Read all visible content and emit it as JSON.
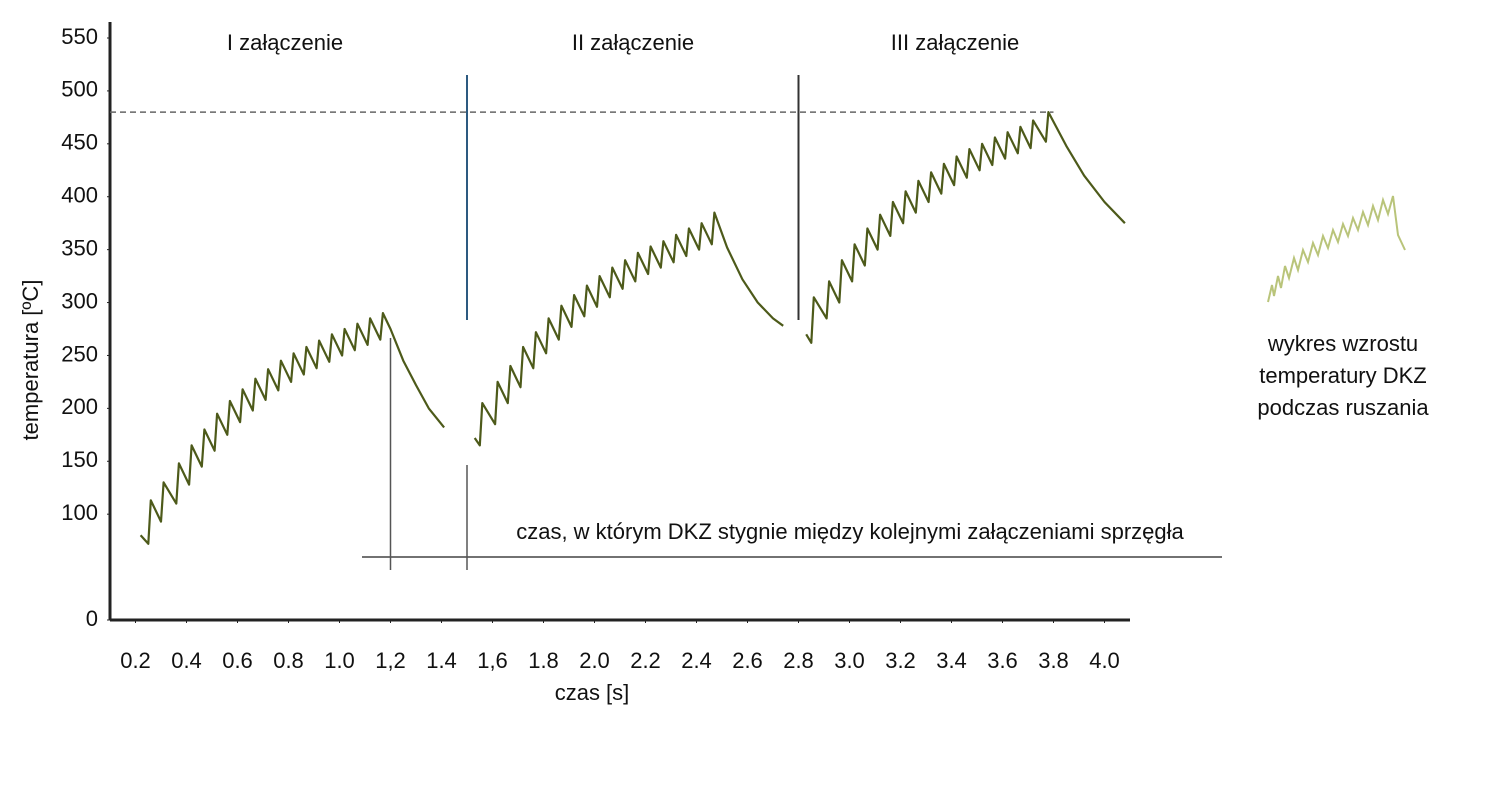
{
  "chart_data": {
    "type": "line",
    "x_label": "czas [s]",
    "y_label": "temperatura [ºC]",
    "xlim": [
      0.1,
      4.1
    ],
    "ylim": [
      0,
      550
    ],
    "xticks": [
      0.2,
      0.4,
      0.6,
      0.8,
      {
        "value": 1,
        "label": "1.0"
      },
      {
        "value": 1.2,
        "label": "1,2"
      },
      1.4,
      {
        "value": 1.6,
        "label": "1,6"
      },
      1.8,
      {
        "value": 2,
        "label": "2.0"
      },
      2.2,
      2.4,
      2.6,
      2.8,
      {
        "value": 3,
        "label": "3.0"
      },
      3.2,
      3.4,
      3.6,
      3.8,
      {
        "value": 4,
        "label": "4.0"
      }
    ],
    "yticks": [
      0,
      100,
      150,
      200,
      250,
      300,
      350,
      400,
      450,
      500,
      550
    ],
    "grid": false,
    "reference_line": 480,
    "dividers": [
      1.5,
      2.8
    ],
    "phase_labels": [
      "I załączenie",
      "II załączenie",
      "III załączenie"
    ],
    "cooling_interval": [
      1.2,
      1.5
    ],
    "cooling_annotation": "czas, w którym DKZ stygnie między kolejnymi załączeniami sprzęgła",
    "inset_caption": [
      "wykres wzrostu",
      "temperatury DKZ",
      "podczas ruszania"
    ],
    "x": [
      0.22,
      0.25,
      0.26,
      0.3,
      0.31,
      0.36,
      0.37,
      0.41,
      0.42,
      0.46,
      0.47,
      0.51,
      0.52,
      0.56,
      0.57,
      0.61,
      0.62,
      0.66,
      0.67,
      0.71,
      0.72,
      0.76,
      0.77,
      0.81,
      0.82,
      0.86,
      0.87,
      0.91,
      0.92,
      0.96,
      0.97,
      1.01,
      1.02,
      1.06,
      1.07,
      1.11,
      1.12,
      1.16,
      1.17,
      1.2,
      1.25,
      1.3,
      1.35,
      1.41,
      1.45,
      1.53,
      1.55,
      1.56,
      1.61,
      1.62,
      1.66,
      1.67,
      1.71,
      1.72,
      1.76,
      1.77,
      1.81,
      1.82,
      1.86,
      1.87,
      1.91,
      1.92,
      1.96,
      1.97,
      2.01,
      2.02,
      2.06,
      2.07,
      2.11,
      2.12,
      2.16,
      2.17,
      2.21,
      2.22,
      2.26,
      2.27,
      2.31,
      2.32,
      2.36,
      2.37,
      2.41,
      2.42,
      2.46,
      2.47,
      2.52,
      2.58,
      2.64,
      2.7,
      2.74,
      2.78,
      2.83,
      2.85,
      2.86,
      2.91,
      2.92,
      2.96,
      2.97,
      3.01,
      3.02,
      3.06,
      3.07,
      3.11,
      3.12,
      3.16,
      3.17,
      3.21,
      3.22,
      3.26,
      3.27,
      3.31,
      3.32,
      3.36,
      3.37,
      3.41,
      3.42,
      3.46,
      3.47,
      3.51,
      3.52,
      3.56,
      3.57,
      3.61,
      3.62,
      3.66,
      3.67,
      3.71,
      3.72,
      3.77,
      3.78,
      3.85,
      3.92,
      4.0,
      4.08
    ],
    "series": [
      {
        "color": "#4d5a1a",
        "values": [
          80,
          72,
          113,
          93,
          130,
          110,
          148,
          128,
          165,
          145,
          180,
          160,
          195,
          175,
          207,
          187,
          218,
          198,
          228,
          208,
          237,
          217,
          245,
          225,
          252,
          232,
          258,
          238,
          264,
          244,
          270,
          250,
          275,
          255,
          280,
          260,
          285,
          265,
          290,
          275,
          245,
          222,
          200,
          182,
          null,
          172,
          165,
          205,
          185,
          225,
          205,
          240,
          220,
          258,
          238,
          272,
          252,
          285,
          265,
          297,
          277,
          307,
          287,
          316,
          296,
          325,
          305,
          333,
          313,
          340,
          320,
          347,
          327,
          353,
          333,
          358,
          338,
          364,
          344,
          370,
          350,
          375,
          355,
          385,
          352,
          322,
          300,
          285,
          278,
          null,
          270,
          262,
          305,
          285,
          320,
          300,
          340,
          320,
          355,
          335,
          370,
          350,
          383,
          363,
          395,
          375,
          405,
          385,
          415,
          395,
          423,
          403,
          431,
          411,
          438,
          418,
          445,
          425,
          450,
          430,
          456,
          436,
          461,
          441,
          466,
          446,
          472,
          452,
          480,
          448,
          420,
          395,
          375
        ]
      }
    ]
  }
}
